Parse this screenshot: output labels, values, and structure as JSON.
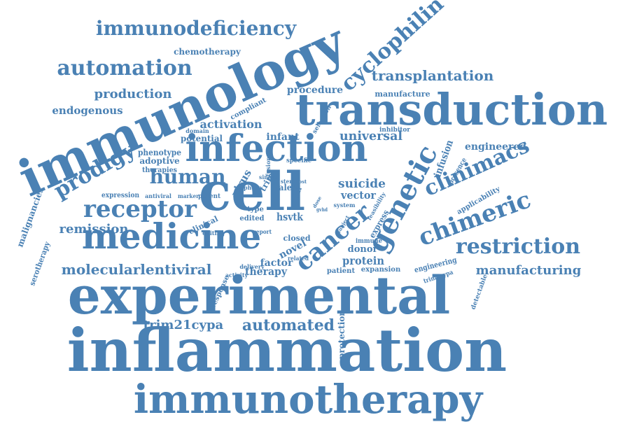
{
  "colors": {
    "word": "#4a81b4",
    "background": "#ffffff"
  },
  "words": [
    {
      "text": "immunotherapy"
    },
    {
      "text": "inflammation"
    },
    {
      "text": "experimental"
    },
    {
      "text": "trim21cypa"
    },
    {
      "text": "automated"
    },
    {
      "text": "protection"
    },
    {
      "text": "immunology"
    },
    {
      "text": "transduction"
    },
    {
      "text": "infection"
    },
    {
      "text": "medicine"
    },
    {
      "text": "receptor"
    },
    {
      "text": "human"
    },
    {
      "text": "prodigy"
    },
    {
      "text": "cell"
    },
    {
      "text": "remission"
    },
    {
      "text": "molecularlentiviral"
    },
    {
      "text": "cancer"
    },
    {
      "text": "genetic"
    },
    {
      "text": "chimeric"
    },
    {
      "text": "clinimacs"
    },
    {
      "text": "restriction"
    },
    {
      "text": "manufacturing"
    },
    {
      "text": "immunodeficiency"
    },
    {
      "text": "automation"
    },
    {
      "text": "production"
    },
    {
      "text": "endogenous"
    },
    {
      "text": "chemotherapy"
    },
    {
      "text": "cyclophilin"
    },
    {
      "text": "transplantation"
    },
    {
      "text": "procedure"
    },
    {
      "text": "manufacture"
    },
    {
      "text": "activation"
    },
    {
      "text": "compliant"
    },
    {
      "text": "selection"
    },
    {
      "text": "infant"
    },
    {
      "text": "potential"
    },
    {
      "text": "domain"
    },
    {
      "text": "universal"
    },
    {
      "text": "inhibitor"
    },
    {
      "text": "engineered"
    },
    {
      "text": "infusion"
    },
    {
      "text": "presence"
    },
    {
      "text": "phenotype"
    },
    {
      "text": "adoptive"
    },
    {
      "text": "therapies"
    },
    {
      "text": "expression"
    },
    {
      "text": "antiviral"
    },
    {
      "text": "marker"
    },
    {
      "text": "potent"
    },
    {
      "text": "clinical"
    },
    {
      "text": "editing"
    },
    {
      "text": "virus"
    },
    {
      "text": "trim"
    },
    {
      "text": "phase"
    },
    {
      "text": "single"
    },
    {
      "text": "fusion"
    },
    {
      "text": "specific"
    },
    {
      "text": "stem"
    },
    {
      "text": "talen"
    },
    {
      "text": "viral"
    },
    {
      "text": "suicide"
    },
    {
      "text": "vector"
    },
    {
      "text": "system"
    },
    {
      "text": "feasibility"
    },
    {
      "text": "applicability"
    },
    {
      "text": "type"
    },
    {
      "text": "edited"
    },
    {
      "text": "hsvtk"
    },
    {
      "text": "report"
    },
    {
      "text": "closed"
    },
    {
      "text": "express"
    },
    {
      "text": "novel"
    },
    {
      "text": "immune"
    },
    {
      "text": "donor"
    },
    {
      "text": "protein"
    },
    {
      "text": "factor"
    },
    {
      "text": "related"
    },
    {
      "text": "patient"
    },
    {
      "text": "therapy"
    },
    {
      "text": "delivery"
    },
    {
      "text": "activity"
    },
    {
      "text": "expansion"
    },
    {
      "text": "engineering"
    },
    {
      "text": "trim5cypa"
    },
    {
      "text": "detectable"
    },
    {
      "text": "response"
    },
    {
      "text": "serotherapy"
    },
    {
      "text": "malignancies"
    },
    {
      "text": "subject"
    },
    {
      "text": "gvhd"
    },
    {
      "text": "dose"
    },
    {
      "text": "host"
    }
  ]
}
